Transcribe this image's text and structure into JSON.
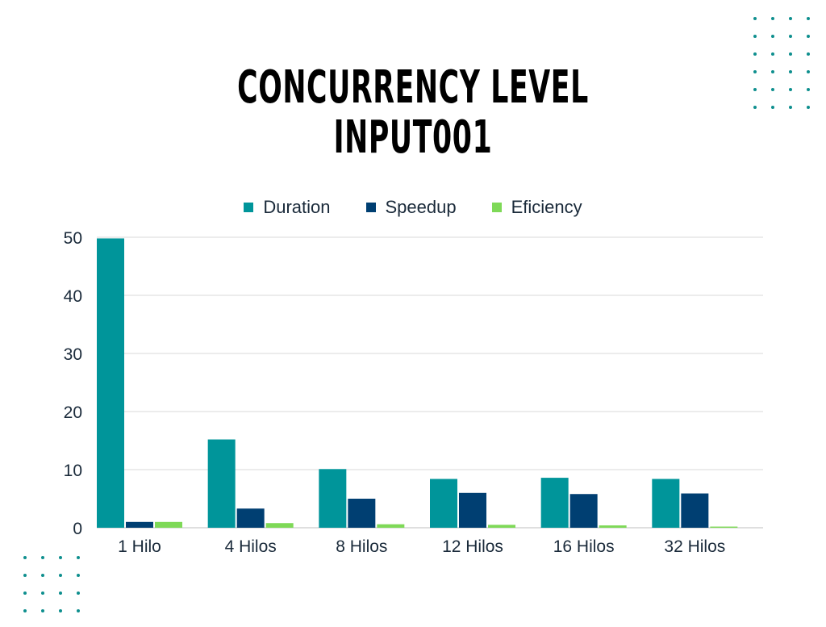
{
  "title_lines": [
    "CONCURRENCY LEVEL",
    "INPUT001"
  ],
  "colors": {
    "duration": "#00959A",
    "speedup": "#003F72",
    "eficiency": "#7ED957",
    "dots": "#0E8F8E",
    "grid": "#d9d9d9",
    "axis_text": "#1a2a3a"
  },
  "chart_data": {
    "type": "bar",
    "title": "CONCURRENCY LEVEL INPUT001",
    "categories": [
      "1 Hilo",
      "4 Hilos",
      "8 Hilos",
      "12 Hilos",
      "16 Hilos",
      "32 Hilos"
    ],
    "series": [
      {
        "name": "Duration",
        "values": [
          49.8,
          15.2,
          10.1,
          8.4,
          8.6,
          8.4
        ]
      },
      {
        "name": "Speedup",
        "values": [
          1.0,
          3.3,
          5.0,
          6.0,
          5.8,
          5.9
        ]
      },
      {
        "name": "Eficiency",
        "values": [
          1.0,
          0.8,
          0.6,
          0.5,
          0.4,
          0.2
        ]
      }
    ],
    "ylim": [
      0,
      50
    ],
    "yticks": [
      "0",
      "10",
      "20",
      "30",
      "40",
      "50"
    ],
    "grid": true,
    "legend_position": "top"
  }
}
